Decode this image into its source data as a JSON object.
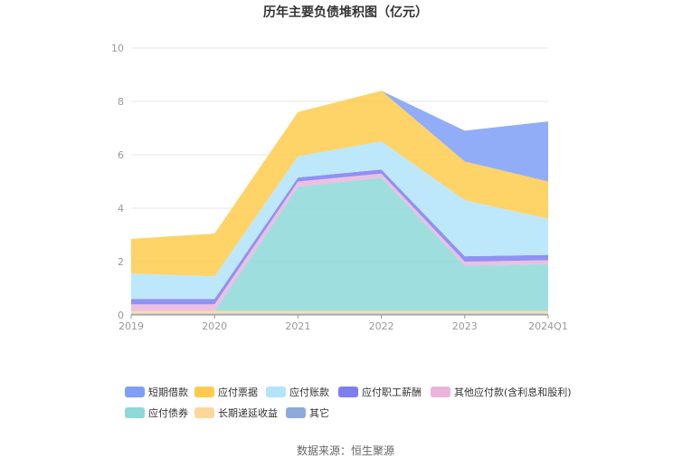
{
  "chart_data": {
    "type": "area",
    "stacked": true,
    "title": "历年主要负债堆积图（亿元）",
    "x": [
      "2019",
      "2020",
      "2021",
      "2022",
      "2023",
      "2024Q1"
    ],
    "ylim": [
      0,
      10
    ],
    "yticks": [
      "0",
      "2",
      "4",
      "6",
      "8",
      "10"
    ],
    "grid": true,
    "legend_position": "bottom",
    "series": [
      {
        "name": "其它",
        "color": "#8eaad8",
        "values": [
          0.05,
          0.05,
          0.05,
          0.05,
          0.05,
          0.05
        ]
      },
      {
        "name": "长期递延收益",
        "color": "#fcd89b",
        "values": [
          0.1,
          0.1,
          0.1,
          0.1,
          0.1,
          0.1
        ]
      },
      {
        "name": "应付债券",
        "color": "#8ed8d8",
        "values": [
          0.0,
          0.0,
          4.65,
          5.0,
          1.7,
          1.75
        ]
      },
      {
        "name": "其他应付款(含利息和股利)",
        "color": "#eab4dc",
        "values": [
          0.25,
          0.25,
          0.2,
          0.15,
          0.15,
          0.15
        ]
      },
      {
        "name": "应付职工薪酬",
        "color": "#7d7ef0",
        "values": [
          0.2,
          0.2,
          0.15,
          0.15,
          0.2,
          0.2
        ]
      },
      {
        "name": "应付账款",
        "color": "#b2e4fb",
        "values": [
          0.95,
          0.85,
          0.8,
          1.05,
          2.1,
          1.35
        ]
      },
      {
        "name": "应付票据",
        "color": "#fecb4e",
        "values": [
          1.3,
          1.6,
          1.65,
          1.9,
          1.45,
          1.4
        ]
      },
      {
        "name": "短期借款",
        "color": "#7f9ff7",
        "values": [
          0.0,
          0.0,
          0.0,
          0.0,
          1.15,
          2.25
        ]
      }
    ],
    "legend_order": [
      "短期借款",
      "应付票据",
      "应付账款",
      "应付职工薪酬",
      "其他应付款(含利息和股利)",
      "应付债券",
      "长期递延收益",
      "其它"
    ]
  },
  "source_text": "数据来源：恒生聚源"
}
